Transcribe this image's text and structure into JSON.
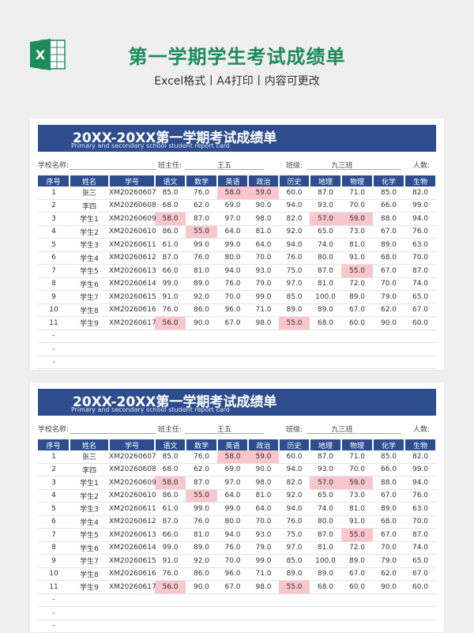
{
  "page": {
    "title": "第一学期学生考试成绩单",
    "subtitle": "Excel格式丨A4打印丨内容可更改",
    "icon": "excel-icon",
    "accent": "#1f8a5b"
  },
  "sheet": {
    "banner_title": "20XX-20XX第一学期考试成绩单",
    "banner_subtitle": "Primary and secondary school student report card",
    "info": {
      "school_label": "学校名称:",
      "teacher_label": "班主任:",
      "teacher_value": "王五",
      "class_label": "班级:",
      "class_value": "九三班",
      "count_label": "人数:"
    },
    "headers": [
      "序号",
      "姓名",
      "学号",
      "语文",
      "数学",
      "英语",
      "政治",
      "历史",
      "地理",
      "物理",
      "化学",
      "生物"
    ],
    "rows": [
      [
        "1",
        "张三",
        "XM20260607",
        "85.0",
        "76.0",
        "58.0",
        "59.0",
        "60.0",
        "87.0",
        "71.0",
        "85.0",
        "82.0"
      ],
      [
        "2",
        "李四",
        "XM20260608",
        "68.0",
        "62.0",
        "69.0",
        "90.0",
        "94.0",
        "93.0",
        "70.0",
        "66.0",
        "99.0"
      ],
      [
        "3",
        "学生1",
        "XM20260609",
        "58.0",
        "87.0",
        "97.0",
        "98.0",
        "82.0",
        "57.0",
        "59.0",
        "88.0",
        "94.0"
      ],
      [
        "4",
        "学生2",
        "XM20260610",
        "86.0",
        "55.0",
        "64.0",
        "81.0",
        "92.0",
        "65.0",
        "73.0",
        "67.0",
        "76.0"
      ],
      [
        "5",
        "学生3",
        "XM20260611",
        "61.0",
        "99.0",
        "99.0",
        "64.0",
        "94.0",
        "74.0",
        "81.0",
        "89.0",
        "63.0"
      ],
      [
        "6",
        "学生4",
        "XM20260612",
        "87.0",
        "76.0",
        "80.0",
        "70.0",
        "76.0",
        "80.0",
        "91.0",
        "68.0",
        "70.0"
      ],
      [
        "7",
        "学生5",
        "XM20260613",
        "66.0",
        "81.0",
        "94.0",
        "93.0",
        "75.0",
        "87.0",
        "55.0",
        "67.0",
        "87.0"
      ],
      [
        "8",
        "学生6",
        "XM20260614",
        "99.0",
        "89.0",
        "76.0",
        "79.0",
        "97.0",
        "81.0",
        "72.0",
        "70.0",
        "74.0"
      ],
      [
        "9",
        "学生7",
        "XM20260615",
        "91.0",
        "92.0",
        "70.0",
        "99.0",
        "85.0",
        "100.0",
        "89.0",
        "79.0",
        "65.0"
      ],
      [
        "10",
        "学生8",
        "XM20260616",
        "76.0",
        "86.0",
        "96.0",
        "71.0",
        "89.0",
        "89.0",
        "67.0",
        "62.0",
        "67.0"
      ],
      [
        "11",
        "学生9",
        "XM20260617",
        "56.0",
        "90.0",
        "67.0",
        "98.0",
        "55.0",
        "68.0",
        "60.0",
        "90.0",
        "60.0"
      ],
      [
        "-",
        "",
        "",
        "",
        "",
        "",
        "",
        "",
        "",
        "",
        "",
        ""
      ],
      [
        "-",
        "",
        "",
        "",
        "",
        "",
        "",
        "",
        "",
        "",
        "",
        ""
      ],
      [
        "-",
        "",
        "",
        "",
        "",
        "",
        "",
        "",
        "",
        "",
        "",
        ""
      ]
    ],
    "highlight_color": "#f9c6cc",
    "header_color": "#2e4d8f",
    "fail_threshold": 60
  }
}
